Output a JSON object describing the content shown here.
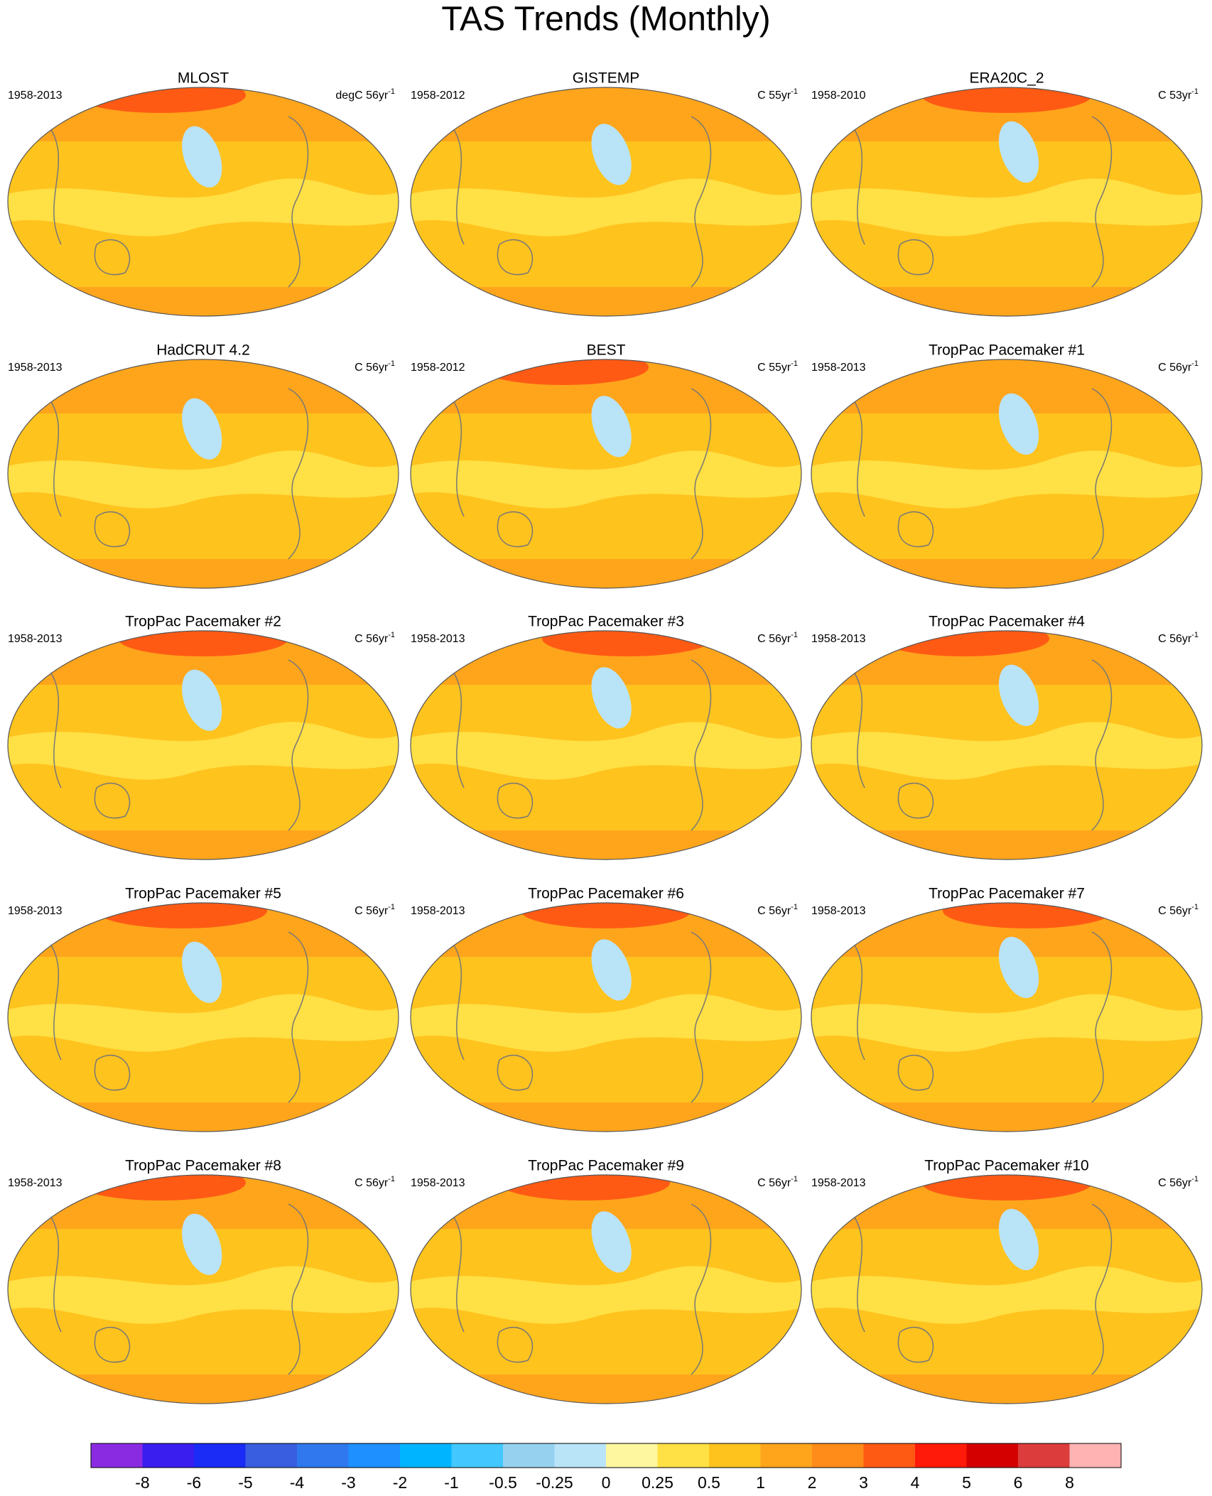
{
  "title": "TAS Trends (Monthly)",
  "panels": [
    {
      "title": "MLOST",
      "period": "1958-2013",
      "units": "degC 56yr",
      "units_exp": "-1"
    },
    {
      "title": "GISTEMP",
      "period": "1958-2012",
      "units": "C 55yr",
      "units_exp": "-1"
    },
    {
      "title": "ERA20C_2",
      "period": "1958-2010",
      "units": "C 53yr",
      "units_exp": "-1"
    },
    {
      "title": "HadCRUT 4.2",
      "period": "1958-2013",
      "units": "C 56yr",
      "units_exp": "-1"
    },
    {
      "title": "BEST",
      "period": "1958-2012",
      "units": "C 55yr",
      "units_exp": "-1"
    },
    {
      "title": "TropPac Pacemaker #1",
      "period": "1958-2013",
      "units": "C 56yr",
      "units_exp": "-1"
    },
    {
      "title": "TropPac Pacemaker #2",
      "period": "1958-2013",
      "units": "C 56yr",
      "units_exp": "-1"
    },
    {
      "title": "TropPac Pacemaker #3",
      "period": "1958-2013",
      "units": "C 56yr",
      "units_exp": "-1"
    },
    {
      "title": "TropPac Pacemaker #4",
      "period": "1958-2013",
      "units": "C 56yr",
      "units_exp": "-1"
    },
    {
      "title": "TropPac Pacemaker #5",
      "period": "1958-2013",
      "units": "C 56yr",
      "units_exp": "-1"
    },
    {
      "title": "TropPac Pacemaker #6",
      "period": "1958-2013",
      "units": "C 56yr",
      "units_exp": "-1"
    },
    {
      "title": "TropPac Pacemaker #7",
      "period": "1958-2013",
      "units": "C 56yr",
      "units_exp": "-1"
    },
    {
      "title": "TropPac Pacemaker #8",
      "period": "1958-2013",
      "units": "C 56yr",
      "units_exp": "-1"
    },
    {
      "title": "TropPac Pacemaker #9",
      "period": "1958-2013",
      "units": "C 56yr",
      "units_exp": "-1"
    },
    {
      "title": "TropPac Pacemaker #10",
      "period": "1958-2013",
      "units": "C 56yr",
      "units_exp": "-1"
    }
  ],
  "colorbar": {
    "colors": [
      "#8a2be2",
      "#3a1ef0",
      "#1a2cf5",
      "#3a5ee0",
      "#2f78ee",
      "#1e90ff",
      "#00b4ff",
      "#42c8ff",
      "#96d2f0",
      "#b9e3f7",
      "#fff7a0",
      "#ffe045",
      "#ffc31e",
      "#ffa51c",
      "#ff8c19",
      "#ff5a14",
      "#ff1a0a",
      "#d40000",
      "#dc3c3c",
      "#ffb3b3"
    ],
    "labels": [
      -8,
      -6,
      -5,
      -4,
      -3,
      -2,
      -1,
      -0.5,
      -0.25,
      0,
      0.25,
      0.5,
      1,
      2,
      3,
      4,
      5,
      6,
      8
    ]
  }
}
